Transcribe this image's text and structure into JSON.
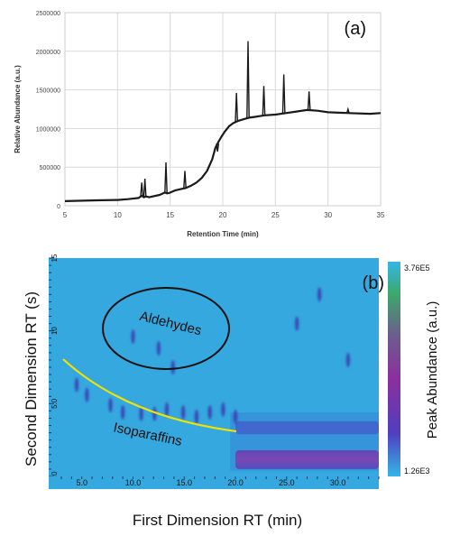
{
  "chart_data": [
    {
      "type": "line",
      "panel_label": "(a)",
      "xlabel": "Retention Time (min)",
      "ylabel": "Relative Abundance (a.u.)",
      "xlim": [
        5,
        35
      ],
      "ylim": [
        0,
        2500000
      ],
      "x_ticks": [
        "5",
        "10",
        "15",
        "20",
        "25",
        "30",
        "35"
      ],
      "y_ticks": [
        "0",
        "500000",
        "1000000",
        "1500000",
        "2000000",
        "2500000"
      ],
      "grid": true,
      "series": [
        {
          "color": "#1a1a1a",
          "x": [
            5,
            8,
            10,
            11,
            12,
            12.3,
            12.5,
            12.7,
            13,
            14,
            14.5,
            14.7,
            14.9,
            15.5,
            16,
            16.5,
            17,
            17.5,
            18,
            18.5,
            19,
            19.3,
            19.6,
            19.9,
            20.2,
            20.6,
            21,
            21.5,
            22,
            22.5,
            23,
            23.5,
            24,
            25,
            26,
            27,
            28,
            29,
            30,
            32,
            34,
            35
          ],
          "y": [
            60000,
            70000,
            75000,
            85000,
            100000,
            130000,
            110000,
            120000,
            110000,
            140000,
            170000,
            160000,
            165000,
            200000,
            215000,
            230000,
            260000,
            300000,
            360000,
            450000,
            600000,
            750000,
            830000,
            900000,
            960000,
            1030000,
            1070000,
            1100000,
            1120000,
            1140000,
            1150000,
            1160000,
            1170000,
            1180000,
            1200000,
            1220000,
            1240000,
            1230000,
            1210000,
            1200000,
            1190000,
            1200000
          ]
        }
      ],
      "peaks": [
        {
          "x": 12.3,
          "y": 300000
        },
        {
          "x": 12.6,
          "y": 350000
        },
        {
          "x": 14.6,
          "y": 560000
        },
        {
          "x": 16.4,
          "y": 450000
        },
        {
          "x": 19.5,
          "y": 700000
        },
        {
          "x": 21.3,
          "y": 1460000
        },
        {
          "x": 22.4,
          "y": 2130000
        },
        {
          "x": 23.9,
          "y": 1550000
        },
        {
          "x": 25.8,
          "y": 1700000
        },
        {
          "x": 28.2,
          "y": 1480000
        },
        {
          "x": 31.9,
          "y": 1250000
        }
      ]
    },
    {
      "type": "heatmap",
      "panel_label": "(b)",
      "xlabel": "First Dimension RT (min)",
      "ylabel": "Second Dimension RT (s)",
      "colorbar_label": "Peak Abundance (a.u.)",
      "colorbar_max": "3.76E5",
      "colorbar_min": "1.26E3",
      "x_ticks": [
        "5.0",
        "10.0",
        "15.0",
        "20.0",
        "25.0",
        "30.0"
      ],
      "y_ticks": [
        "0.0",
        "5.0",
        "10",
        "15"
      ],
      "xlim": [
        3,
        34
      ],
      "ylim": [
        0,
        15
      ],
      "background_color": "#35a8df",
      "annotations": [
        {
          "text": "Aldehydes",
          "shape": "ellipse",
          "color": "#111111"
        },
        {
          "text": "Isoparaffins",
          "shape": "curve",
          "color": "#f2e200"
        }
      ],
      "spots": [
        {
          "x": 4.5,
          "y": 6.3
        },
        {
          "x": 5.5,
          "y": 5.6
        },
        {
          "x": 7.8,
          "y": 4.9
        },
        {
          "x": 9.0,
          "y": 4.4
        },
        {
          "x": 10.8,
          "y": 4.3
        },
        {
          "x": 12.1,
          "y": 4.3
        },
        {
          "x": 13.3,
          "y": 4.6
        },
        {
          "x": 14.9,
          "y": 4.4
        },
        {
          "x": 16.2,
          "y": 4.1
        },
        {
          "x": 17.5,
          "y": 4.4
        },
        {
          "x": 18.8,
          "y": 4.6
        },
        {
          "x": 20.0,
          "y": 4.1
        },
        {
          "x": 12.5,
          "y": 8.8
        },
        {
          "x": 13.9,
          "y": 7.5
        },
        {
          "x": 10.0,
          "y": 9.6
        },
        {
          "x": 26.0,
          "y": 10.5
        },
        {
          "x": 28.2,
          "y": 12.5
        },
        {
          "x": 31.0,
          "y": 8.0
        }
      ],
      "bands": [
        {
          "x_start": 20.0,
          "x_end": 34,
          "y_low": 2.9,
          "y_high": 3.8,
          "level": "medium"
        },
        {
          "x_start": 20.0,
          "x_end": 34,
          "y_low": 0.5,
          "y_high": 1.8,
          "level": "high"
        }
      ]
    }
  ]
}
